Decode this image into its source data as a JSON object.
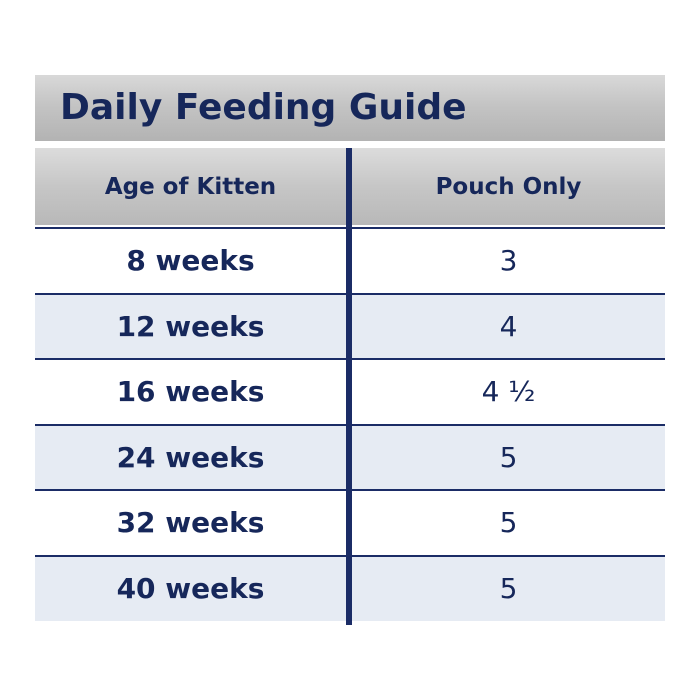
{
  "title": "Daily Feeding Guide",
  "table": {
    "header": [
      "Age of Kitten",
      "Pouch Only"
    ],
    "rows": [
      [
        "8 weeks",
        3
      ],
      [
        "12 weeks",
        4
      ],
      [
        "16 weeks",
        "4 ½"
      ],
      [
        "24 weeks",
        5
      ],
      [
        "32 weeks",
        5
      ],
      [
        "40 weeks",
        5
      ]
    ]
  }
}
